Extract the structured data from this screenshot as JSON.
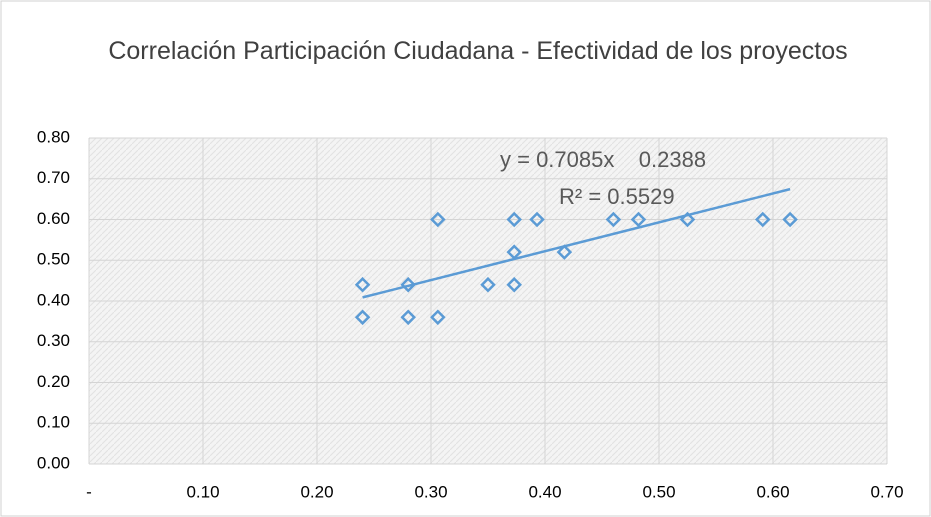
{
  "chart_data": {
    "type": "scatter",
    "title": "Correlación Participación Ciudadana - Efectividad de los proyectos",
    "series": [
      {
        "color": "#5b9bd5",
        "x": [
          0.24,
          0.24,
          0.28,
          0.28,
          0.306,
          0.306,
          0.35,
          0.373,
          0.373,
          0.373,
          0.393,
          0.417,
          0.46,
          0.482,
          0.525,
          0.591,
          0.615
        ],
        "values": [
          0.44,
          0.36,
          0.44,
          0.36,
          0.6,
          0.36,
          0.44,
          0.6,
          0.52,
          0.44,
          0.6,
          0.52,
          0.6,
          0.6,
          0.6,
          0.6,
          0.6
        ]
      }
    ],
    "trendline": {
      "slope": 0.7085,
      "intercept": 0.2388,
      "equation": "y = 0.7085x    0.2388",
      "r2_label": "R² = 0.5529",
      "r2": 0.5529
    },
    "xlim": [
      0,
      0.7
    ],
    "ylim": [
      0,
      0.8
    ],
    "xticks": [
      {
        "value": 0,
        "label": "-"
      },
      {
        "value": 0.1,
        "label": "0.10"
      },
      {
        "value": 0.2,
        "label": "0.20"
      },
      {
        "value": 0.3,
        "label": "0.30"
      },
      {
        "value": 0.4,
        "label": "0.40"
      },
      {
        "value": 0.5,
        "label": "0.50"
      },
      {
        "value": 0.6,
        "label": "0.60"
      },
      {
        "value": 0.7,
        "label": "0.70"
      }
    ],
    "yticks": [
      {
        "value": 0,
        "label": "0.00"
      },
      {
        "value": 0.1,
        "label": "0.10"
      },
      {
        "value": 0.2,
        "label": "0.20"
      },
      {
        "value": 0.3,
        "label": "0.30"
      },
      {
        "value": 0.4,
        "label": "0.40"
      },
      {
        "value": 0.5,
        "label": "0.50"
      },
      {
        "value": 0.6,
        "label": "0.60"
      },
      {
        "value": 0.7,
        "label": "0.70"
      },
      {
        "value": 0.8,
        "label": "0.80"
      }
    ],
    "grid": true
  }
}
